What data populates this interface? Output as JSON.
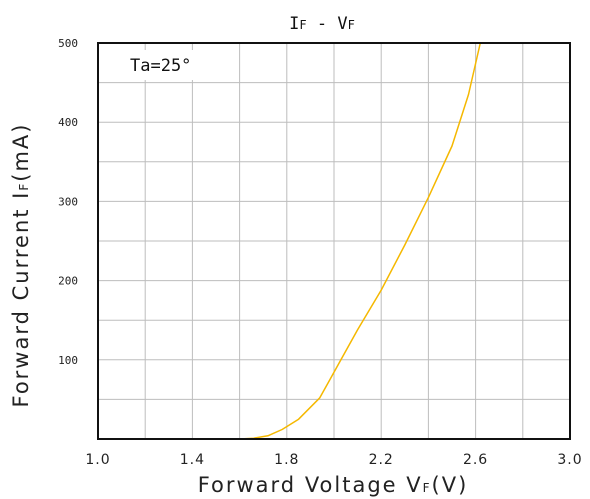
{
  "chart_data": {
    "type": "line",
    "title": {
      "main_i": "I",
      "main_i_sub": "F",
      "sep": " - ",
      "main_v": "V",
      "main_v_sub": "F"
    },
    "xlabel": {
      "text": "Forward Voltage V",
      "sub": "F",
      "unit": "(V)"
    },
    "ylabel": {
      "text": "Forward Current I",
      "sub": "F",
      "unit": "(mA)"
    },
    "annotation": "Ta=25°",
    "xlim": [
      1.0,
      3.0
    ],
    "ylim": [
      0,
      500
    ],
    "x_ticks": [
      1.0,
      1.4,
      1.8,
      2.2,
      2.6,
      3.0
    ],
    "x_tick_labels": [
      "1.0",
      "1.4",
      "1.8",
      "2.2",
      "2.6",
      "3.0"
    ],
    "y_ticks": [
      100,
      200,
      300,
      400,
      500
    ],
    "y_tick_labels": [
      "100",
      "200",
      "300",
      "400",
      "500"
    ],
    "x_grid_step": 0.2,
    "y_grid_step": 50,
    "grid": true,
    "legend": "none",
    "series": [
      {
        "color": "#f5b800",
        "x": [
          1.4,
          1.6,
          1.66,
          1.72,
          1.78,
          1.85,
          1.94,
          2.02,
          2.1,
          2.2,
          2.3,
          2.4,
          2.5,
          2.57,
          2.62
        ],
        "y": [
          0,
          0,
          1,
          4,
          12,
          25,
          52,
          95,
          138,
          188,
          245,
          305,
          370,
          435,
          500
        ]
      }
    ]
  }
}
